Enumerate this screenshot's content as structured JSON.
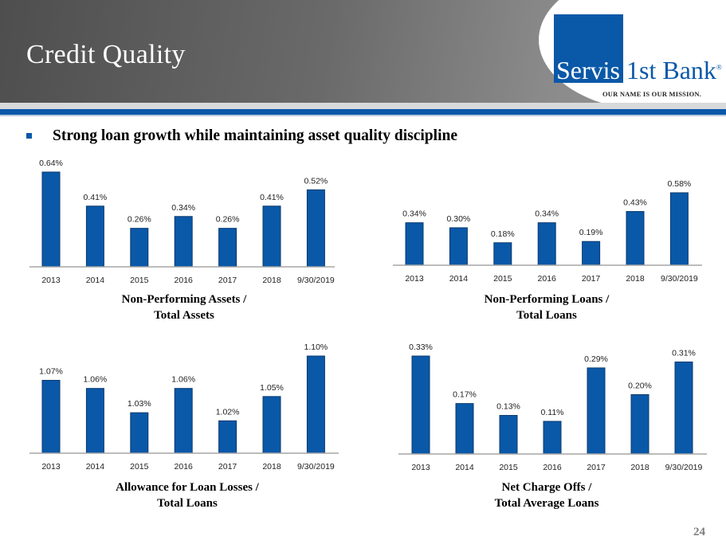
{
  "header": {
    "title": "Credit Quality",
    "logo": {
      "left": "Servis",
      "right": "1st Bank",
      "registered": "®",
      "tagline": "OUR NAME IS OUR MISSION."
    },
    "brand_color": "#0a58a8"
  },
  "headline": "Strong loan growth while maintaining asset quality discipline",
  "page_number": "24",
  "chart_data": [
    {
      "type": "bar",
      "title_line1": "Non-Performing Assets /",
      "title_line2": "Total Assets",
      "categories": [
        "2013",
        "2014",
        "2015",
        "2016",
        "2017",
        "2018",
        "9/30/2019"
      ],
      "values": [
        0.64,
        0.41,
        0.26,
        0.34,
        0.26,
        0.41,
        0.52
      ],
      "labels": [
        "0.64%",
        "0.41%",
        "0.26%",
        "0.34%",
        "0.26%",
        "0.41%",
        "0.52%"
      ],
      "ylim": [
        0,
        0.64
      ],
      "unit": "%"
    },
    {
      "type": "bar",
      "title_line1": "Non-Performing Loans /",
      "title_line2": "Total Loans",
      "categories": [
        "2013",
        "2014",
        "2015",
        "2016",
        "2017",
        "2018",
        "9/30/2019"
      ],
      "values": [
        0.34,
        0.3,
        0.18,
        0.34,
        0.19,
        0.43,
        0.58
      ],
      "labels": [
        "0.34%",
        "0.30%",
        "0.18%",
        "0.34%",
        "0.19%",
        "0.43%",
        "0.58%"
      ],
      "ylim": [
        0,
        0.7
      ],
      "unit": "%"
    },
    {
      "type": "bar",
      "title_line1": "Allowance for Loan Losses /",
      "title_line2": "Total Loans",
      "categories": [
        "2013",
        "2014",
        "2015",
        "2016",
        "2017",
        "2018",
        "9/30/2019"
      ],
      "values": [
        1.07,
        1.06,
        1.03,
        1.06,
        1.02,
        1.05,
        1.1
      ],
      "labels": [
        "1.07%",
        "1.06%",
        "1.03%",
        "1.06%",
        "1.02%",
        "1.05%",
        "1.10%"
      ],
      "ylim": [
        0.98,
        1.1
      ],
      "unit": "%"
    },
    {
      "type": "bar",
      "title_line1": "Net Charge Offs /",
      "title_line2": "Total Average Loans",
      "categories": [
        "2013",
        "2014",
        "2015",
        "2016",
        "2017",
        "2018",
        "9/30/2019"
      ],
      "values": [
        0.33,
        0.17,
        0.13,
        0.11,
        0.29,
        0.2,
        0.31
      ],
      "labels": [
        "0.33%",
        "0.17%",
        "0.13%",
        "0.11%",
        "0.29%",
        "0.20%",
        "0.31%"
      ],
      "ylim": [
        0,
        0.33
      ],
      "unit": "%"
    }
  ]
}
